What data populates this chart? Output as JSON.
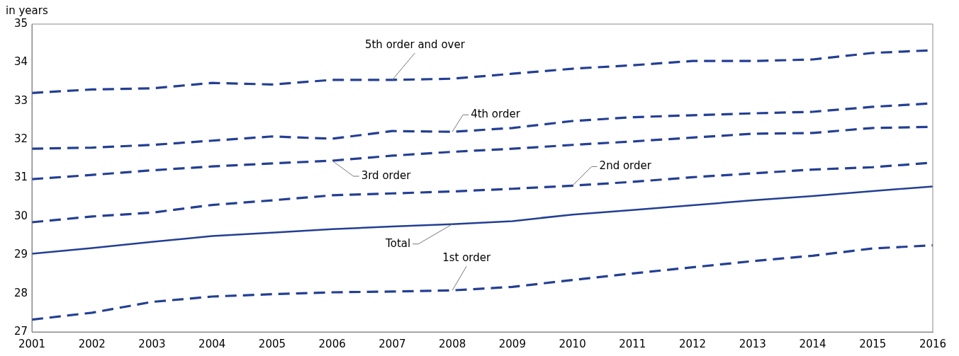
{
  "chart_data": {
    "type": "line",
    "ylabel": "in years",
    "categories": [
      "2001",
      "2002",
      "2003",
      "2004",
      "2005",
      "2006",
      "2007",
      "2008",
      "2009",
      "2010",
      "2011",
      "2012",
      "2013",
      "2014",
      "2015",
      "2016"
    ],
    "ylim": [
      27,
      35
    ],
    "yticks": [
      27,
      28,
      29,
      30,
      31,
      32,
      33,
      34,
      35
    ],
    "grid": false,
    "legend": false,
    "marker": "none",
    "series": [
      {
        "name": "5th order and over",
        "color": "#233f94",
        "line_style": "dashed",
        "values": [
          33.21,
          33.3,
          33.33,
          33.47,
          33.43,
          33.55,
          33.55,
          33.58,
          33.71,
          33.84,
          33.93,
          34.04,
          34.04,
          34.08,
          34.25,
          34.32
        ]
      },
      {
        "name": "4th order",
        "color": "#233f94",
        "line_style": "dashed",
        "values": [
          31.76,
          31.79,
          31.86,
          31.97,
          32.08,
          32.02,
          32.22,
          32.2,
          32.3,
          32.48,
          32.58,
          32.63,
          32.68,
          32.72,
          32.85,
          32.94
        ]
      },
      {
        "name": "3rd order",
        "color": "#233f94",
        "line_style": "dashed",
        "values": [
          30.97,
          31.08,
          31.2,
          31.3,
          31.38,
          31.45,
          31.58,
          31.68,
          31.76,
          31.86,
          31.95,
          32.05,
          32.15,
          32.17,
          32.3,
          32.33
        ]
      },
      {
        "name": "2nd order",
        "color": "#233f94",
        "line_style": "dashed",
        "values": [
          29.85,
          30.0,
          30.1,
          30.3,
          30.42,
          30.55,
          30.6,
          30.65,
          30.72,
          30.8,
          30.9,
          31.02,
          31.12,
          31.22,
          31.28,
          31.4
        ]
      },
      {
        "name": "Total",
        "color": "#233f94",
        "line_style": "solid",
        "values": [
          29.03,
          29.18,
          29.34,
          29.49,
          29.58,
          29.67,
          29.74,
          29.8,
          29.88,
          30.05,
          30.17,
          30.29,
          30.42,
          30.53,
          30.66,
          30.78
        ]
      },
      {
        "name": "1st order",
        "color": "#233f94",
        "line_style": "dashed",
        "values": [
          27.32,
          27.5,
          27.78,
          27.92,
          27.98,
          28.03,
          28.05,
          28.08,
          28.17,
          28.35,
          28.52,
          28.68,
          28.84,
          28.98,
          29.17,
          29.25
        ]
      }
    ]
  }
}
